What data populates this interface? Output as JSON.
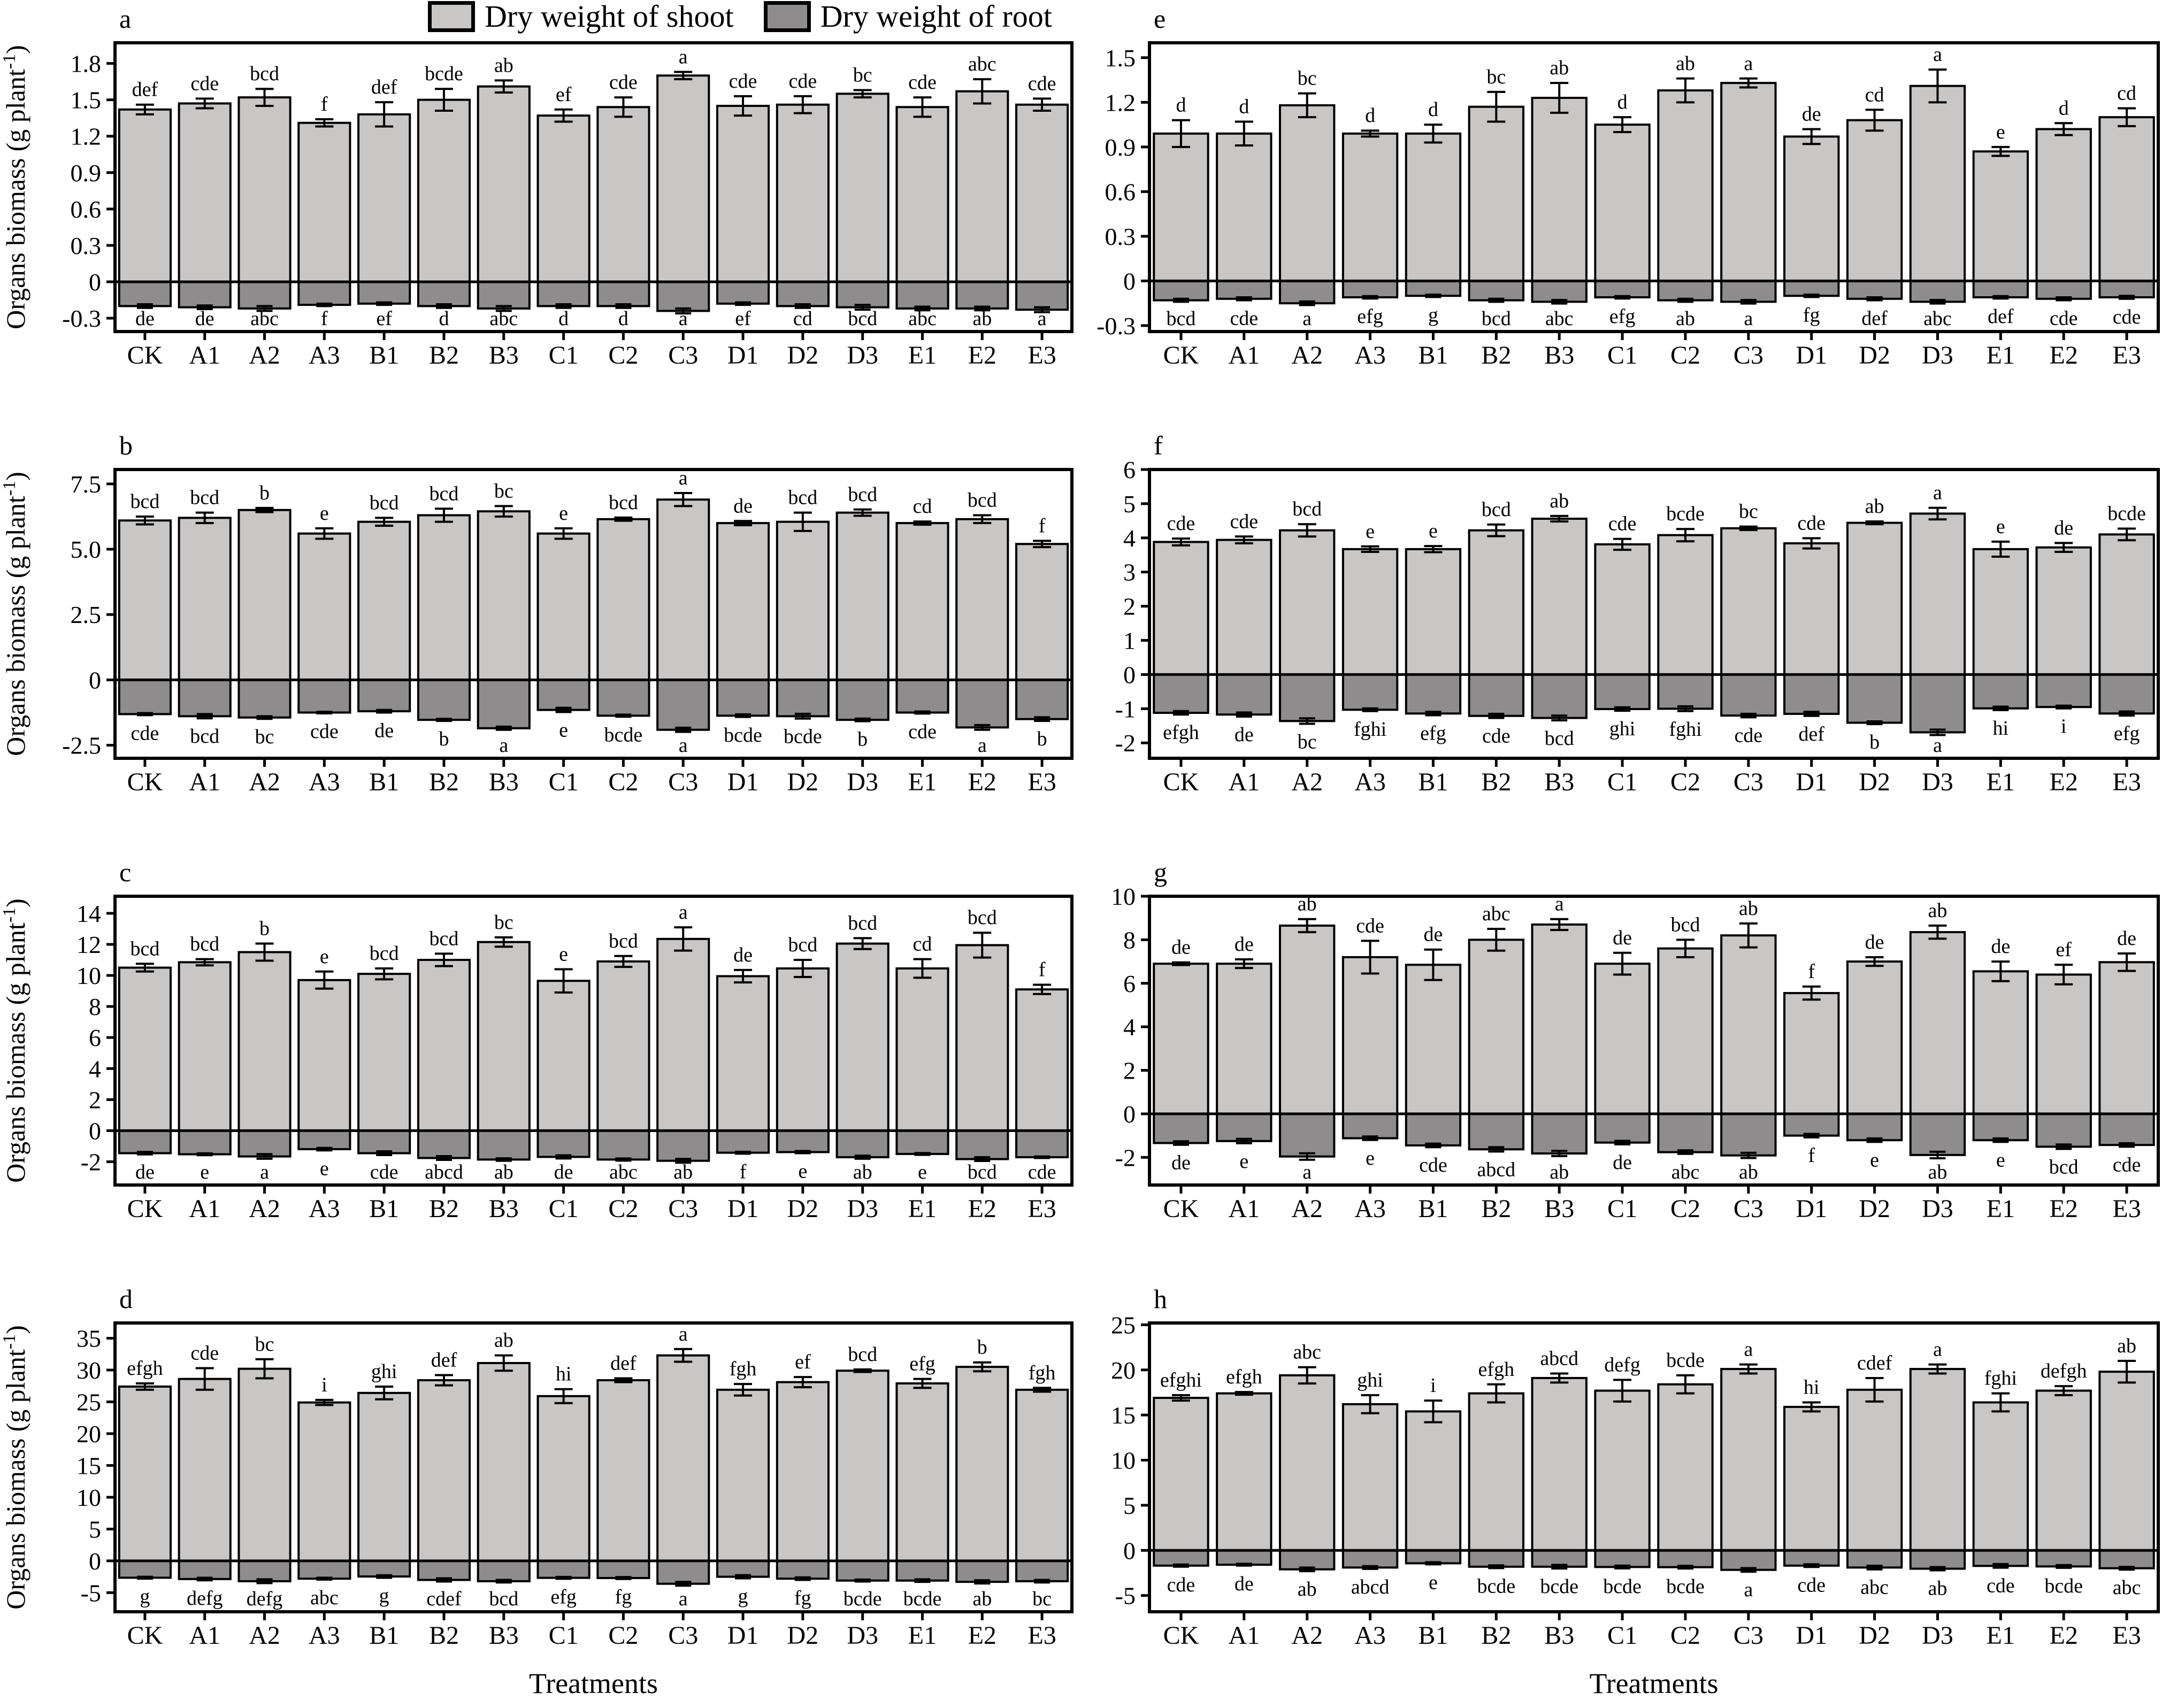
{
  "figure": {
    "legend": [
      {
        "label": "Dry weight of shoot",
        "color": "#c9c6c6"
      },
      {
        "label": "Dry weight of root",
        "color": "#8e8c8d"
      }
    ],
    "y_axis_title": "Organs biomass (g plant⁻¹)",
    "x_axis_title": "Treatments",
    "categories": [
      "CK",
      "A1",
      "A2",
      "A3",
      "B1",
      "B2",
      "B3",
      "C1",
      "C2",
      "C3",
      "D1",
      "D2",
      "D3",
      "E1",
      "E2",
      "E3"
    ],
    "colors": {
      "axis": "#000000",
      "background": "#ffffff"
    }
  },
  "chart_data": [
    {
      "id": "a",
      "type": "bar",
      "ylim": [
        -0.41,
        1.97
      ],
      "yticks": [
        "1.8",
        "1.5",
        "1.2",
        "0.9",
        "0.6",
        "0.3",
        "0",
        "-0.3"
      ],
      "series": [
        {
          "name": "Dry weight of shoot",
          "values": [
            1.42,
            1.47,
            1.52,
            1.31,
            1.38,
            1.5,
            1.61,
            1.37,
            1.44,
            1.7,
            1.45,
            1.46,
            1.55,
            1.44,
            1.57,
            1.46
          ],
          "errors": [
            0.04,
            0.04,
            0.07,
            0.03,
            0.1,
            0.09,
            0.05,
            0.05,
            0.08,
            0.03,
            0.08,
            0.07,
            0.03,
            0.08,
            0.1,
            0.05
          ],
          "letters": [
            "def",
            "cde",
            "bcd",
            "f",
            "def",
            "bcde",
            "ab",
            "ef",
            "cde",
            "a",
            "cde",
            "cde",
            "bc",
            "cde",
            "abc",
            "cde"
          ]
        },
        {
          "name": "Dry weight of root",
          "values": [
            -0.2,
            -0.21,
            -0.22,
            -0.19,
            -0.18,
            -0.2,
            -0.22,
            -0.2,
            -0.2,
            -0.24,
            -0.18,
            -0.2,
            -0.21,
            -0.22,
            -0.22,
            -0.23
          ],
          "errors": [
            0.015,
            0.015,
            0.02,
            0.01,
            0.01,
            0.015,
            0.02,
            0.015,
            0.015,
            0.02,
            0.01,
            0.015,
            0.02,
            0.015,
            0.015,
            0.02
          ],
          "letters": [
            "de",
            "de",
            "abc",
            "f",
            "ef",
            "d",
            "abc",
            "d",
            "d",
            "a",
            "ef",
            "cd",
            "bcd",
            "abc",
            "ab",
            "a"
          ]
        }
      ]
    },
    {
      "id": "b",
      "type": "bar",
      "ylim": [
        -3.0,
        8.05
      ],
      "yticks": [
        "7.5",
        "5.0",
        "2.5",
        "0",
        "-2.5"
      ],
      "series": [
        {
          "name": "Dry weight of shoot",
          "values": [
            6.1,
            6.2,
            6.5,
            5.6,
            6.05,
            6.3,
            6.45,
            5.6,
            6.15,
            6.9,
            6.0,
            6.05,
            6.4,
            6.0,
            6.15,
            5.2
          ],
          "errors": [
            0.15,
            0.2,
            0.08,
            0.2,
            0.15,
            0.25,
            0.2,
            0.2,
            0.06,
            0.25,
            0.08,
            0.35,
            0.12,
            0.06,
            0.15,
            0.12
          ],
          "letters": [
            "bcd",
            "bcd",
            "b",
            "e",
            "bcd",
            "bcd",
            "bc",
            "e",
            "bcd",
            "a",
            "de",
            "bcd",
            "bcd",
            "cd",
            "bcd",
            "f"
          ]
        },
        {
          "name": "Dry weight of root",
          "values": [
            -1.31,
            -1.39,
            -1.44,
            -1.25,
            -1.2,
            -1.53,
            -1.85,
            -1.15,
            -1.37,
            -1.91,
            -1.37,
            -1.39,
            -1.53,
            -1.25,
            -1.82,
            -1.5
          ],
          "errors": [
            0.04,
            0.08,
            0.05,
            0.03,
            0.05,
            0.04,
            0.06,
            0.08,
            0.04,
            0.08,
            0.05,
            0.09,
            0.05,
            0.04,
            0.09,
            0.07
          ],
          "letters": [
            "cde",
            "bcd",
            "bc",
            "cde",
            "de",
            "b",
            "a",
            "e",
            "bcde",
            "a",
            "bcde",
            "bcde",
            "b",
            "cde",
            "a",
            "b"
          ]
        }
      ]
    },
    {
      "id": "c",
      "type": "bar",
      "ylim": [
        -3.5,
        15.1
      ],
      "yticks": [
        "14",
        "12",
        "10",
        "8",
        "6",
        "4",
        "2",
        "0",
        "-2"
      ],
      "series": [
        {
          "name": "Dry weight of shoot",
          "values": [
            10.5,
            10.85,
            11.5,
            9.7,
            10.1,
            11.0,
            12.15,
            9.65,
            10.9,
            12.35,
            9.95,
            10.45,
            12.05,
            10.45,
            11.95,
            9.1
          ],
          "errors": [
            0.25,
            0.2,
            0.55,
            0.55,
            0.35,
            0.4,
            0.3,
            0.75,
            0.35,
            0.75,
            0.4,
            0.55,
            0.35,
            0.6,
            0.8,
            0.3
          ],
          "letters": [
            "bcd",
            "bcd",
            "b",
            "e",
            "bcd",
            "bcd",
            "bc",
            "e",
            "bcd",
            "a",
            "de",
            "bcd",
            "bcd",
            "cd",
            "bcd",
            "f"
          ]
        },
        {
          "name": "Dry weight of root",
          "values": [
            -1.45,
            -1.52,
            -1.66,
            -1.19,
            -1.45,
            -1.76,
            -1.86,
            -1.69,
            -1.86,
            -1.94,
            -1.42,
            -1.38,
            -1.71,
            -1.5,
            -1.83,
            -1.71
          ],
          "errors": [
            0.08,
            0.06,
            0.15,
            0.08,
            0.12,
            0.12,
            0.08,
            0.1,
            0.07,
            0.12,
            0.06,
            0.07,
            0.1,
            0.06,
            0.12,
            0.05
          ],
          "letters": [
            "de",
            "e",
            "a",
            "e",
            "cde",
            "abcd",
            "ab",
            "de",
            "abc",
            "ab",
            "f",
            "e",
            "ab",
            "e",
            "bcd",
            "cde"
          ]
        }
      ]
    },
    {
      "id": "d",
      "type": "bar",
      "ylim": [
        -8.0,
        37.4
      ],
      "yticks": [
        "35",
        "30",
        "25",
        "20",
        "15",
        "10",
        "5",
        "0",
        "-5"
      ],
      "series": [
        {
          "name": "Dry weight of shoot",
          "values": [
            27.4,
            28.6,
            30.2,
            24.9,
            26.4,
            28.4,
            31.1,
            25.9,
            28.4,
            32.3,
            26.9,
            28.1,
            29.9,
            27.9,
            30.5,
            26.9
          ],
          "errors": [
            0.5,
            1.7,
            1.5,
            0.4,
            1.0,
            0.8,
            1.2,
            1.1,
            0.3,
            1.0,
            0.9,
            0.8,
            0.2,
            0.7,
            0.7,
            0.3
          ],
          "letters": [
            "efgh",
            "cde",
            "bc",
            "i",
            "ghi",
            "def",
            "ab",
            "hi",
            "def",
            "a",
            "fgh",
            "ef",
            "bcd",
            "efg",
            "b",
            "fgh"
          ]
        },
        {
          "name": "Dry weight of root",
          "values": [
            -2.65,
            -2.86,
            -3.2,
            -2.8,
            -2.46,
            -3.0,
            -3.2,
            -2.67,
            -2.7,
            -3.6,
            -2.5,
            -2.8,
            -3.1,
            -3.1,
            -3.3,
            -3.2
          ],
          "errors": [
            0.15,
            0.2,
            0.3,
            0.15,
            0.2,
            0.25,
            0.2,
            0.15,
            0.15,
            0.3,
            0.25,
            0.2,
            0.15,
            0.2,
            0.25,
            0.2
          ],
          "letters": [
            "g",
            "defg",
            "defg",
            "abc",
            "g",
            "cdef",
            "bcd",
            "efg",
            "fg",
            "a",
            "g",
            "fg",
            "bcde",
            "bcde",
            "ab",
            "bc"
          ]
        }
      ]
    },
    {
      "id": "e",
      "type": "bar",
      "ylim": [
        -0.34,
        1.6
      ],
      "yticks": [
        "1.5",
        "1.2",
        "0.9",
        "0.6",
        "0.3",
        "0",
        "-0.3"
      ],
      "series": [
        {
          "name": "Dry weight of shoot",
          "values": [
            0.99,
            0.99,
            1.18,
            0.99,
            0.99,
            1.17,
            1.23,
            1.05,
            1.28,
            1.33,
            0.97,
            1.08,
            1.31,
            0.87,
            1.02,
            1.1
          ],
          "errors": [
            0.09,
            0.08,
            0.08,
            0.02,
            0.06,
            0.1,
            0.1,
            0.05,
            0.08,
            0.03,
            0.05,
            0.07,
            0.11,
            0.03,
            0.04,
            0.06
          ],
          "letters": [
            "d",
            "d",
            "bc",
            "d",
            "d",
            "bc",
            "ab",
            "d",
            "ab",
            "a",
            "de",
            "cd",
            "a",
            "e",
            "d",
            "cd"
          ]
        },
        {
          "name": "Dry weight of root",
          "values": [
            -0.13,
            -0.12,
            -0.15,
            -0.11,
            -0.1,
            -0.13,
            -0.14,
            -0.11,
            -0.13,
            -0.14,
            -0.1,
            -0.12,
            -0.14,
            -0.11,
            -0.12,
            -0.11
          ],
          "errors": [
            0.01,
            0.01,
            0.012,
            0.008,
            0.008,
            0.01,
            0.012,
            0.008,
            0.01,
            0.012,
            0.008,
            0.01,
            0.012,
            0.008,
            0.01,
            0.01
          ],
          "letters": [
            "bcd",
            "cde",
            "a",
            "efg",
            "g",
            "bcd",
            "abc",
            "efg",
            "ab",
            "a",
            "fg",
            "def",
            "abc",
            "def",
            "cde",
            "cde"
          ]
        }
      ]
    },
    {
      "id": "f",
      "type": "bar",
      "ylim": [
        -2.45,
        6.0
      ],
      "yticks": [
        "6",
        "5",
        "4",
        "3",
        "2",
        "1",
        "0",
        "-1",
        "-2"
      ],
      "series": [
        {
          "name": "Dry weight of shoot",
          "values": [
            3.88,
            3.94,
            4.22,
            3.67,
            3.67,
            4.22,
            4.56,
            3.81,
            4.08,
            4.28,
            3.84,
            4.44,
            4.71,
            3.67,
            3.72,
            4.1
          ],
          "errors": [
            0.1,
            0.1,
            0.18,
            0.08,
            0.09,
            0.17,
            0.08,
            0.16,
            0.18,
            0.05,
            0.15,
            0.04,
            0.17,
            0.22,
            0.13,
            0.17
          ],
          "letters": [
            "cde",
            "cde",
            "bcd",
            "e",
            "e",
            "bcd",
            "ab",
            "cde",
            "bcde",
            "bc",
            "cde",
            "ab",
            "a",
            "e",
            "de",
            "bcde"
          ]
        },
        {
          "name": "Dry weight of root",
          "values": [
            -1.12,
            -1.17,
            -1.36,
            -1.03,
            -1.14,
            -1.21,
            -1.27,
            -1.01,
            -1.0,
            -1.2,
            -1.15,
            -1.41,
            -1.69,
            -0.99,
            -0.95,
            -1.14
          ],
          "errors": [
            0.05,
            0.06,
            0.08,
            0.04,
            0.05,
            0.06,
            0.07,
            0.05,
            0.07,
            0.05,
            0.06,
            0.04,
            0.08,
            0.05,
            0.04,
            0.06
          ],
          "letters": [
            "efgh",
            "de",
            "bc",
            "fghi",
            "efg",
            "cde",
            "bcd",
            "ghi",
            "fghi",
            "cde",
            "def",
            "b",
            "a",
            "hi",
            "i",
            "efg"
          ]
        }
      ]
    },
    {
      "id": "g",
      "type": "bar",
      "ylim": [
        -3.27,
        10.0
      ],
      "yticks": [
        "10",
        "8",
        "6",
        "4",
        "2",
        "0",
        "-2"
      ],
      "series": [
        {
          "name": "Dry weight of shoot",
          "values": [
            6.9,
            6.9,
            8.65,
            7.2,
            6.85,
            8.0,
            8.7,
            6.9,
            7.6,
            8.2,
            5.55,
            7.0,
            8.35,
            6.55,
            6.4,
            6.97
          ],
          "errors": [
            0.06,
            0.2,
            0.3,
            0.75,
            0.7,
            0.5,
            0.25,
            0.5,
            0.4,
            0.55,
            0.3,
            0.2,
            0.3,
            0.45,
            0.45,
            0.4
          ],
          "letters": [
            "de",
            "de",
            "ab",
            "cde",
            "de",
            "abc",
            "a",
            "de",
            "bcd",
            "ab",
            "f",
            "de",
            "ab",
            "de",
            "ef",
            "de"
          ]
        },
        {
          "name": "Dry weight of root",
          "values": [
            -1.34,
            -1.25,
            -1.96,
            -1.12,
            -1.45,
            -1.63,
            -1.82,
            -1.32,
            -1.76,
            -1.91,
            -1.0,
            -1.21,
            -1.89,
            -1.21,
            -1.51,
            -1.43
          ],
          "errors": [
            0.08,
            0.1,
            0.15,
            0.08,
            0.08,
            0.1,
            0.12,
            0.08,
            0.08,
            0.12,
            0.08,
            0.08,
            0.15,
            0.08,
            0.1,
            0.08
          ],
          "letters": [
            "de",
            "e",
            "a",
            "e",
            "cde",
            "abcd",
            "ab",
            "de",
            "abc",
            "ab",
            "f",
            "e",
            "ab",
            "e",
            "bcd",
            "cde"
          ]
        }
      ]
    },
    {
      "id": "h",
      "type": "bar",
      "ylim": [
        -6.8,
        25.2
      ],
      "yticks": [
        "25",
        "20",
        "15",
        "10",
        "5",
        "0",
        "-5"
      ],
      "series": [
        {
          "name": "Dry weight of shoot",
          "values": [
            16.9,
            17.4,
            19.4,
            16.2,
            15.4,
            17.4,
            19.1,
            17.7,
            18.4,
            20.1,
            15.9,
            17.8,
            20.1,
            16.4,
            17.7,
            19.8
          ],
          "errors": [
            0.3,
            0.15,
            0.9,
            1.0,
            1.2,
            1.0,
            0.5,
            1.2,
            1.0,
            0.5,
            0.5,
            1.3,
            0.5,
            1.0,
            0.5,
            1.2
          ],
          "letters": [
            "efghi",
            "efgh",
            "abc",
            "ghi",
            "i",
            "efgh",
            "abcd",
            "defg",
            "bcde",
            "a",
            "hi",
            "cdef",
            "a",
            "fghi",
            "defgh",
            "ab"
          ]
        },
        {
          "name": "Dry weight of root",
          "values": [
            -1.69,
            -1.59,
            -2.1,
            -1.9,
            -1.43,
            -1.81,
            -1.81,
            -1.84,
            -1.86,
            -2.16,
            -1.69,
            -1.9,
            -2.03,
            -1.72,
            -1.78,
            -1.98
          ],
          "errors": [
            0.12,
            0.1,
            0.2,
            0.15,
            0.12,
            0.15,
            0.2,
            0.15,
            0.15,
            0.2,
            0.15,
            0.2,
            0.18,
            0.2,
            0.15,
            0.15
          ],
          "letters": [
            "cde",
            "de",
            "ab",
            "abcd",
            "e",
            "bcde",
            "bcde",
            "bcde",
            "bcde",
            "a",
            "cde",
            "abc",
            "ab",
            "cde",
            "bcde",
            "abc"
          ]
        }
      ]
    }
  ]
}
